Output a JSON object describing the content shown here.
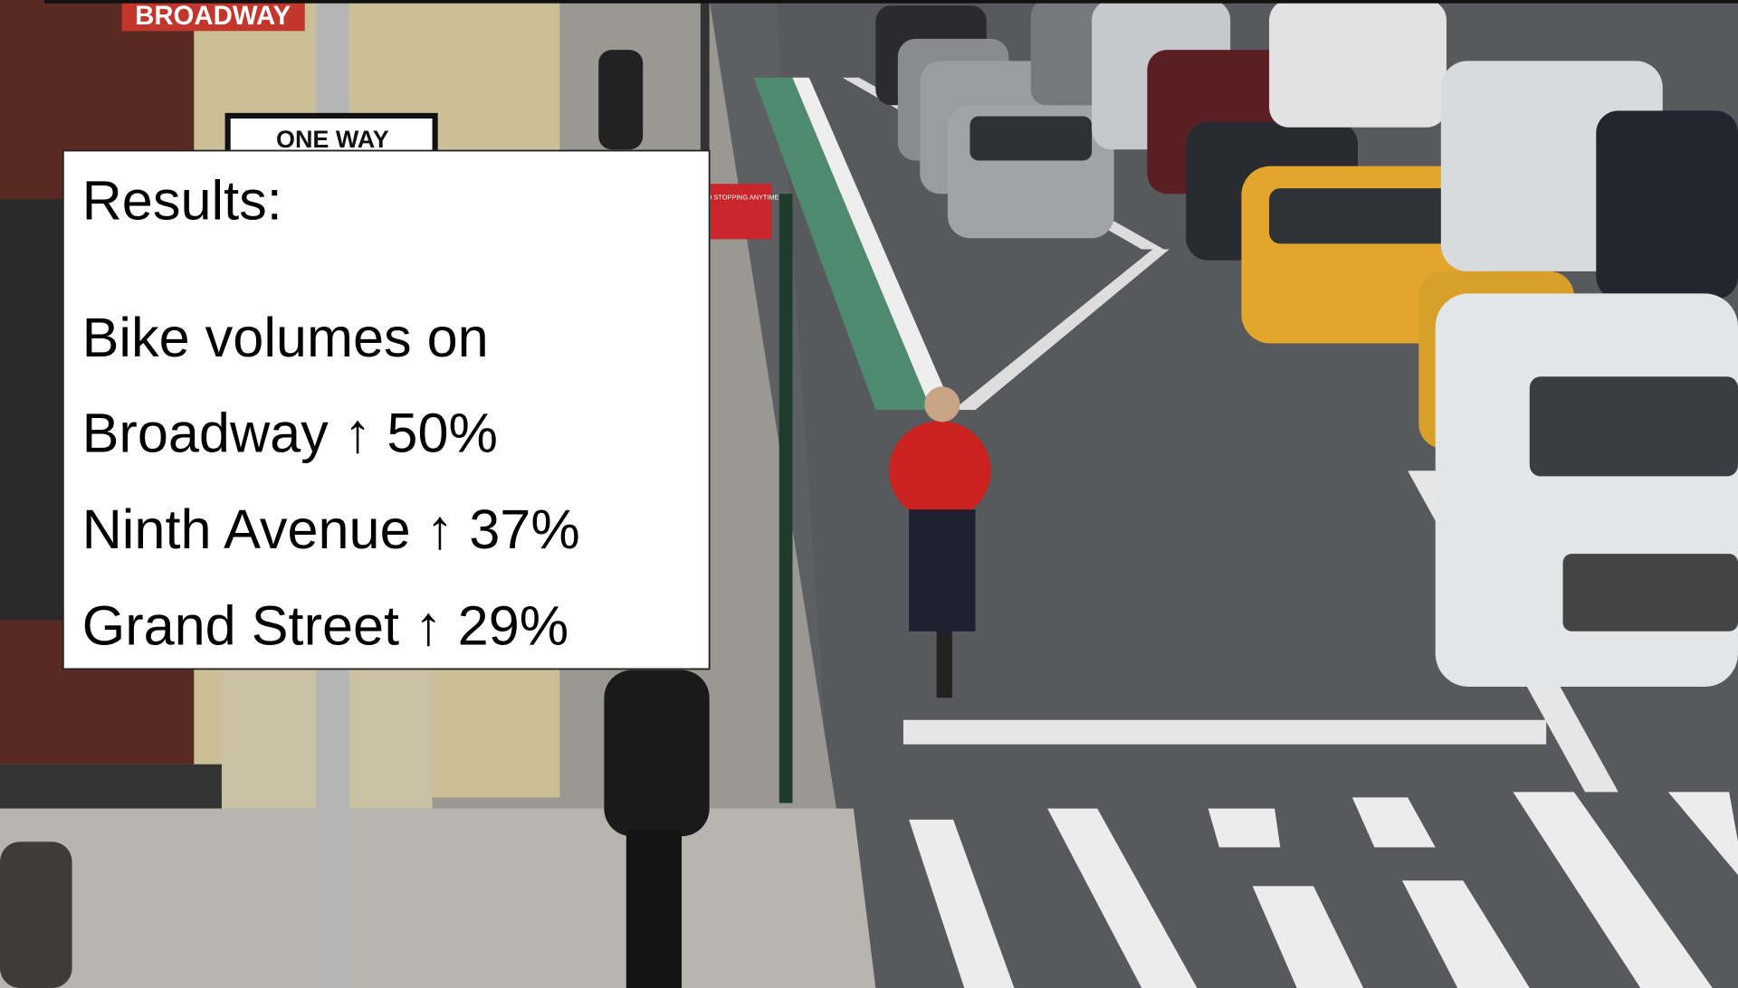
{
  "slide": {
    "box": {
      "title": "Results:",
      "lines": [
        "Bike volumes on",
        "Broadway ↑ 50%",
        "Ninth Avenue ↑ 37%",
        "Grand Street ↑ 29%"
      ]
    },
    "photo_signs": {
      "street_sign": "BROADWAY",
      "one_way": "ONE WAY",
      "no_stopping": "NO STOPPING ANYTIME"
    }
  }
}
